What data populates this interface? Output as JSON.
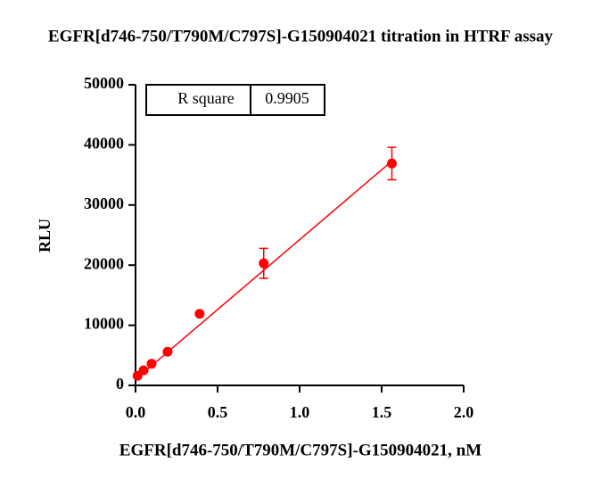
{
  "chart_data": {
    "type": "scatter",
    "title": "EGFR[d746-750/T790M/C797S]-G150904021 titration in HTRF assay",
    "x_label": "EGFR[d746-750/T790M/C797S]-G150904021, nM",
    "y_label": "RLU",
    "series": [
      {
        "color": "#ff0000",
        "x": [
          0.0122,
          0.0488,
          0.0977,
          0.1953,
          0.3906,
          0.7813,
          1.5625
        ],
        "values": [
          1600,
          2500,
          3600,
          5600,
          11900,
          20300,
          36900
        ],
        "errors": [
          null,
          null,
          null,
          null,
          null,
          2500,
          2700
        ]
      }
    ],
    "fit_line": {
      "x": [
        0,
        1.5625
      ],
      "y": [
        1000,
        37300
      ],
      "color": "#ff0000"
    },
    "stats_table": {
      "label": "R square",
      "value": "0.9905"
    },
    "xlim": [
      0,
      2.0
    ],
    "xticks": [
      {
        "value": 0,
        "label": "0.0"
      },
      {
        "value": 0.5,
        "label": "0.5"
      },
      {
        "value": 1.0,
        "label": "1.0"
      },
      {
        "value": 1.5,
        "label": "1.5"
      },
      {
        "value": 2.0,
        "label": "2.0"
      }
    ],
    "ylim": [
      0,
      50000
    ],
    "yticks": [
      0,
      10000,
      20000,
      30000,
      40000,
      50000
    ]
  }
}
